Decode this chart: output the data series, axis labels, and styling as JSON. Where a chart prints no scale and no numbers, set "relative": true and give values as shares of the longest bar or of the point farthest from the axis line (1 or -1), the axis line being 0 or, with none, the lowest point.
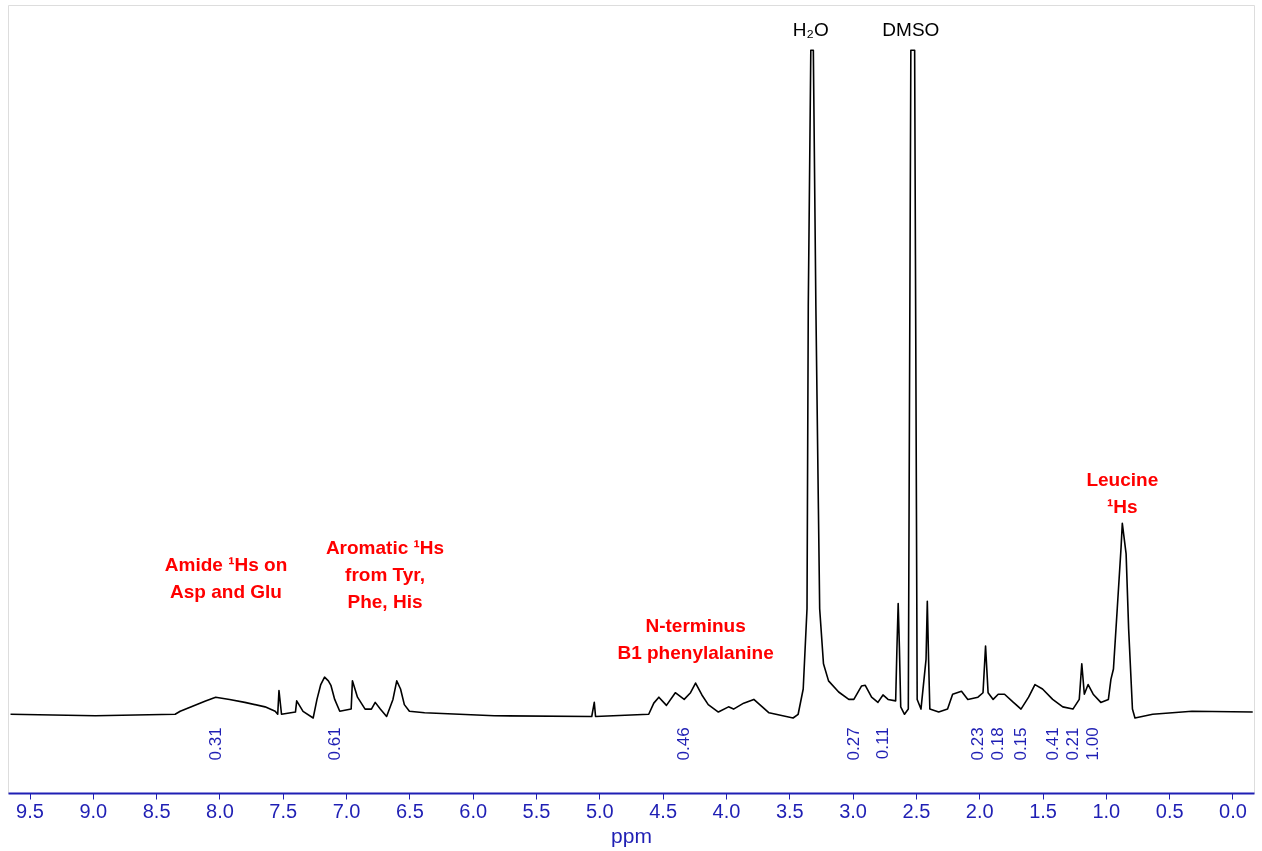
{
  "chart_data": {
    "type": "line",
    "relative": true,
    "xlabel": "ppm",
    "xlim": [
      9.67,
      -0.17
    ],
    "xticks": [
      {
        "value": 9.5,
        "label": "9.5"
      },
      {
        "value": 9,
        "label": "9.0"
      },
      {
        "value": 8.5,
        "label": "8.5"
      },
      {
        "value": 8,
        "label": "8.0"
      },
      {
        "value": 7.5,
        "label": "7.5"
      },
      {
        "value": 7,
        "label": "7.0"
      },
      {
        "value": 6.5,
        "label": "6.5"
      },
      {
        "value": 6,
        "label": "6.0"
      },
      {
        "value": 5.5,
        "label": "5.5"
      },
      {
        "value": 5,
        "label": "5.0"
      },
      {
        "value": 4.5,
        "label": "4.5"
      },
      {
        "value": 4,
        "label": "4.0"
      },
      {
        "value": 3.5,
        "label": "3.5"
      },
      {
        "value": 3,
        "label": "3.0"
      },
      {
        "value": 2.5,
        "label": "2.5"
      },
      {
        "value": 2,
        "label": "2.0"
      },
      {
        "value": 1.5,
        "label": "1.5"
      },
      {
        "value": 1,
        "label": "1.0"
      },
      {
        "value": 0.5,
        "label": "0.5"
      },
      {
        "value": 0,
        "label": "0.0"
      }
    ],
    "series": [
      {
        "color": "#000000",
        "x": [
          9.65,
          8.98,
          8.35,
          8.31,
          8.11,
          8.03,
          7.92,
          7.8,
          7.64,
          7.56,
          7.54,
          7.53,
          7.51,
          7.4,
          7.39,
          7.34,
          7.26,
          7.23,
          7.2,
          7.17,
          7.14,
          7.12,
          7.09,
          7.05,
          6.96,
          6.95,
          6.91,
          6.85,
          6.8,
          6.77,
          6.73,
          6.68,
          6.63,
          6.6,
          6.57,
          6.54,
          6.5,
          6.38,
          5.83,
          5.06,
          5.04,
          5.03,
          4.61,
          4.57,
          4.53,
          4.47,
          4.4,
          4.33,
          4.28,
          4.24,
          4.19,
          4.14,
          4.06,
          3.98,
          3.94,
          3.86,
          3.78,
          3.72,
          3.66,
          3.47,
          3.43,
          3.39,
          3.36,
          3.35,
          3.33,
          3.31,
          3.29,
          3.26,
          3.23,
          3.19,
          3.11,
          3.03,
          2.99,
          2.93,
          2.9,
          2.85,
          2.8,
          2.76,
          2.72,
          2.66,
          2.65,
          2.64,
          2.63,
          2.62,
          2.59,
          2.56,
          2.54,
          2.51,
          2.49,
          2.46,
          2.42,
          2.41,
          2.4,
          2.39,
          2.32,
          2.25,
          2.21,
          2.14,
          2.09,
          2.01,
          1.97,
          1.95,
          1.93,
          1.89,
          1.85,
          1.8,
          1.73,
          1.67,
          1.61,
          1.56,
          1.5,
          1.42,
          1.34,
          1.26,
          1.21,
          1.19,
          1.17,
          1.14,
          1.1,
          1.04,
          0.98,
          0.96,
          0.94,
          0.91,
          0.88,
          0.87,
          0.84,
          0.82,
          0.79,
          0.77,
          0.63,
          0.32,
          -0.16
        ],
        "values": [
          0.106,
          0.104,
          0.106,
          0.11,
          0.124,
          0.129,
          0.126,
          0.122,
          0.116,
          0.11,
          0.106,
          0.138,
          0.106,
          0.109,
          0.124,
          0.11,
          0.101,
          0.126,
          0.146,
          0.156,
          0.151,
          0.145,
          0.126,
          0.11,
          0.113,
          0.151,
          0.129,
          0.113,
          0.113,
          0.122,
          0.113,
          0.103,
          0.126,
          0.151,
          0.14,
          0.119,
          0.11,
          0.108,
          0.104,
          0.103,
          0.122,
          0.103,
          0.106,
          0.121,
          0.129,
          0.118,
          0.135,
          0.126,
          0.135,
          0.148,
          0.132,
          0.119,
          0.109,
          0.116,
          0.113,
          0.121,
          0.126,
          0.117,
          0.108,
          0.101,
          0.106,
          0.14,
          0.248,
          0.655,
          1,
          1,
          0.655,
          0.248,
          0.174,
          0.151,
          0.136,
          0.126,
          0.126,
          0.144,
          0.145,
          0.129,
          0.122,
          0.132,
          0.126,
          0.124,
          0.194,
          0.255,
          0.194,
          0.116,
          0.106,
          0.113,
          1,
          1,
          0.126,
          0.113,
          0.18,
          0.258,
          0.18,
          0.113,
          0.109,
          0.113,
          0.133,
          0.137,
          0.126,
          0.129,
          0.135,
          0.198,
          0.135,
          0.126,
          0.133,
          0.133,
          0.122,
          0.113,
          0.129,
          0.146,
          0.14,
          0.126,
          0.116,
          0.113,
          0.126,
          0.174,
          0.133,
          0.146,
          0.133,
          0.122,
          0.126,
          0.153,
          0.167,
          0.248,
          0.33,
          0.363,
          0.322,
          0.221,
          0.113,
          0.101,
          0.106,
          0.11,
          0.109
        ]
      }
    ],
    "annotations": [
      {
        "text": "H₂O",
        "x": 3.33,
        "y": 1
      },
      {
        "text": "DMSO",
        "x": 2.54,
        "y": 1
      },
      "Amide ¹Hs on\nAsp and Glu",
      "Aromatic ¹Hs\nfrom Tyr,\nPhe, His",
      {
        "text": "N-terminus\nB1 phenylalanine",
        "x": 4.24,
        "y": 0.148
      },
      {
        "text": "Leucine\n¹Hs",
        "x": 0.87,
        "y": 0.363
      },
      {
        "text": "0.31",
        "x": 8.03,
        "y": 0.129
      },
      {
        "text": "0.61",
        "x": 7.09,
        "y": 0.126
      },
      {
        "text": "0.46",
        "x": 4.33,
        "y": 0.126
      },
      {
        "text": "0.27",
        "x": 2.99,
        "y": 0.126
      },
      {
        "text": "0.11",
        "x": 2.76,
        "y": 0.132
      },
      {
        "text": "0.23",
        "x": 2.01,
        "y": 0.129
      },
      {
        "text": "0.18",
        "x": 1.85,
        "y": 0.133
      },
      {
        "text": "0.15",
        "x": 1.67,
        "y": 0.113
      },
      {
        "text": "0.41",
        "x": 1.42,
        "y": 0.126
      },
      {
        "text": "0.21",
        "x": 1.26,
        "y": 0.113
      },
      {
        "text": "1.00",
        "x": 1.1,
        "y": 0.133
      }
    ]
  }
}
